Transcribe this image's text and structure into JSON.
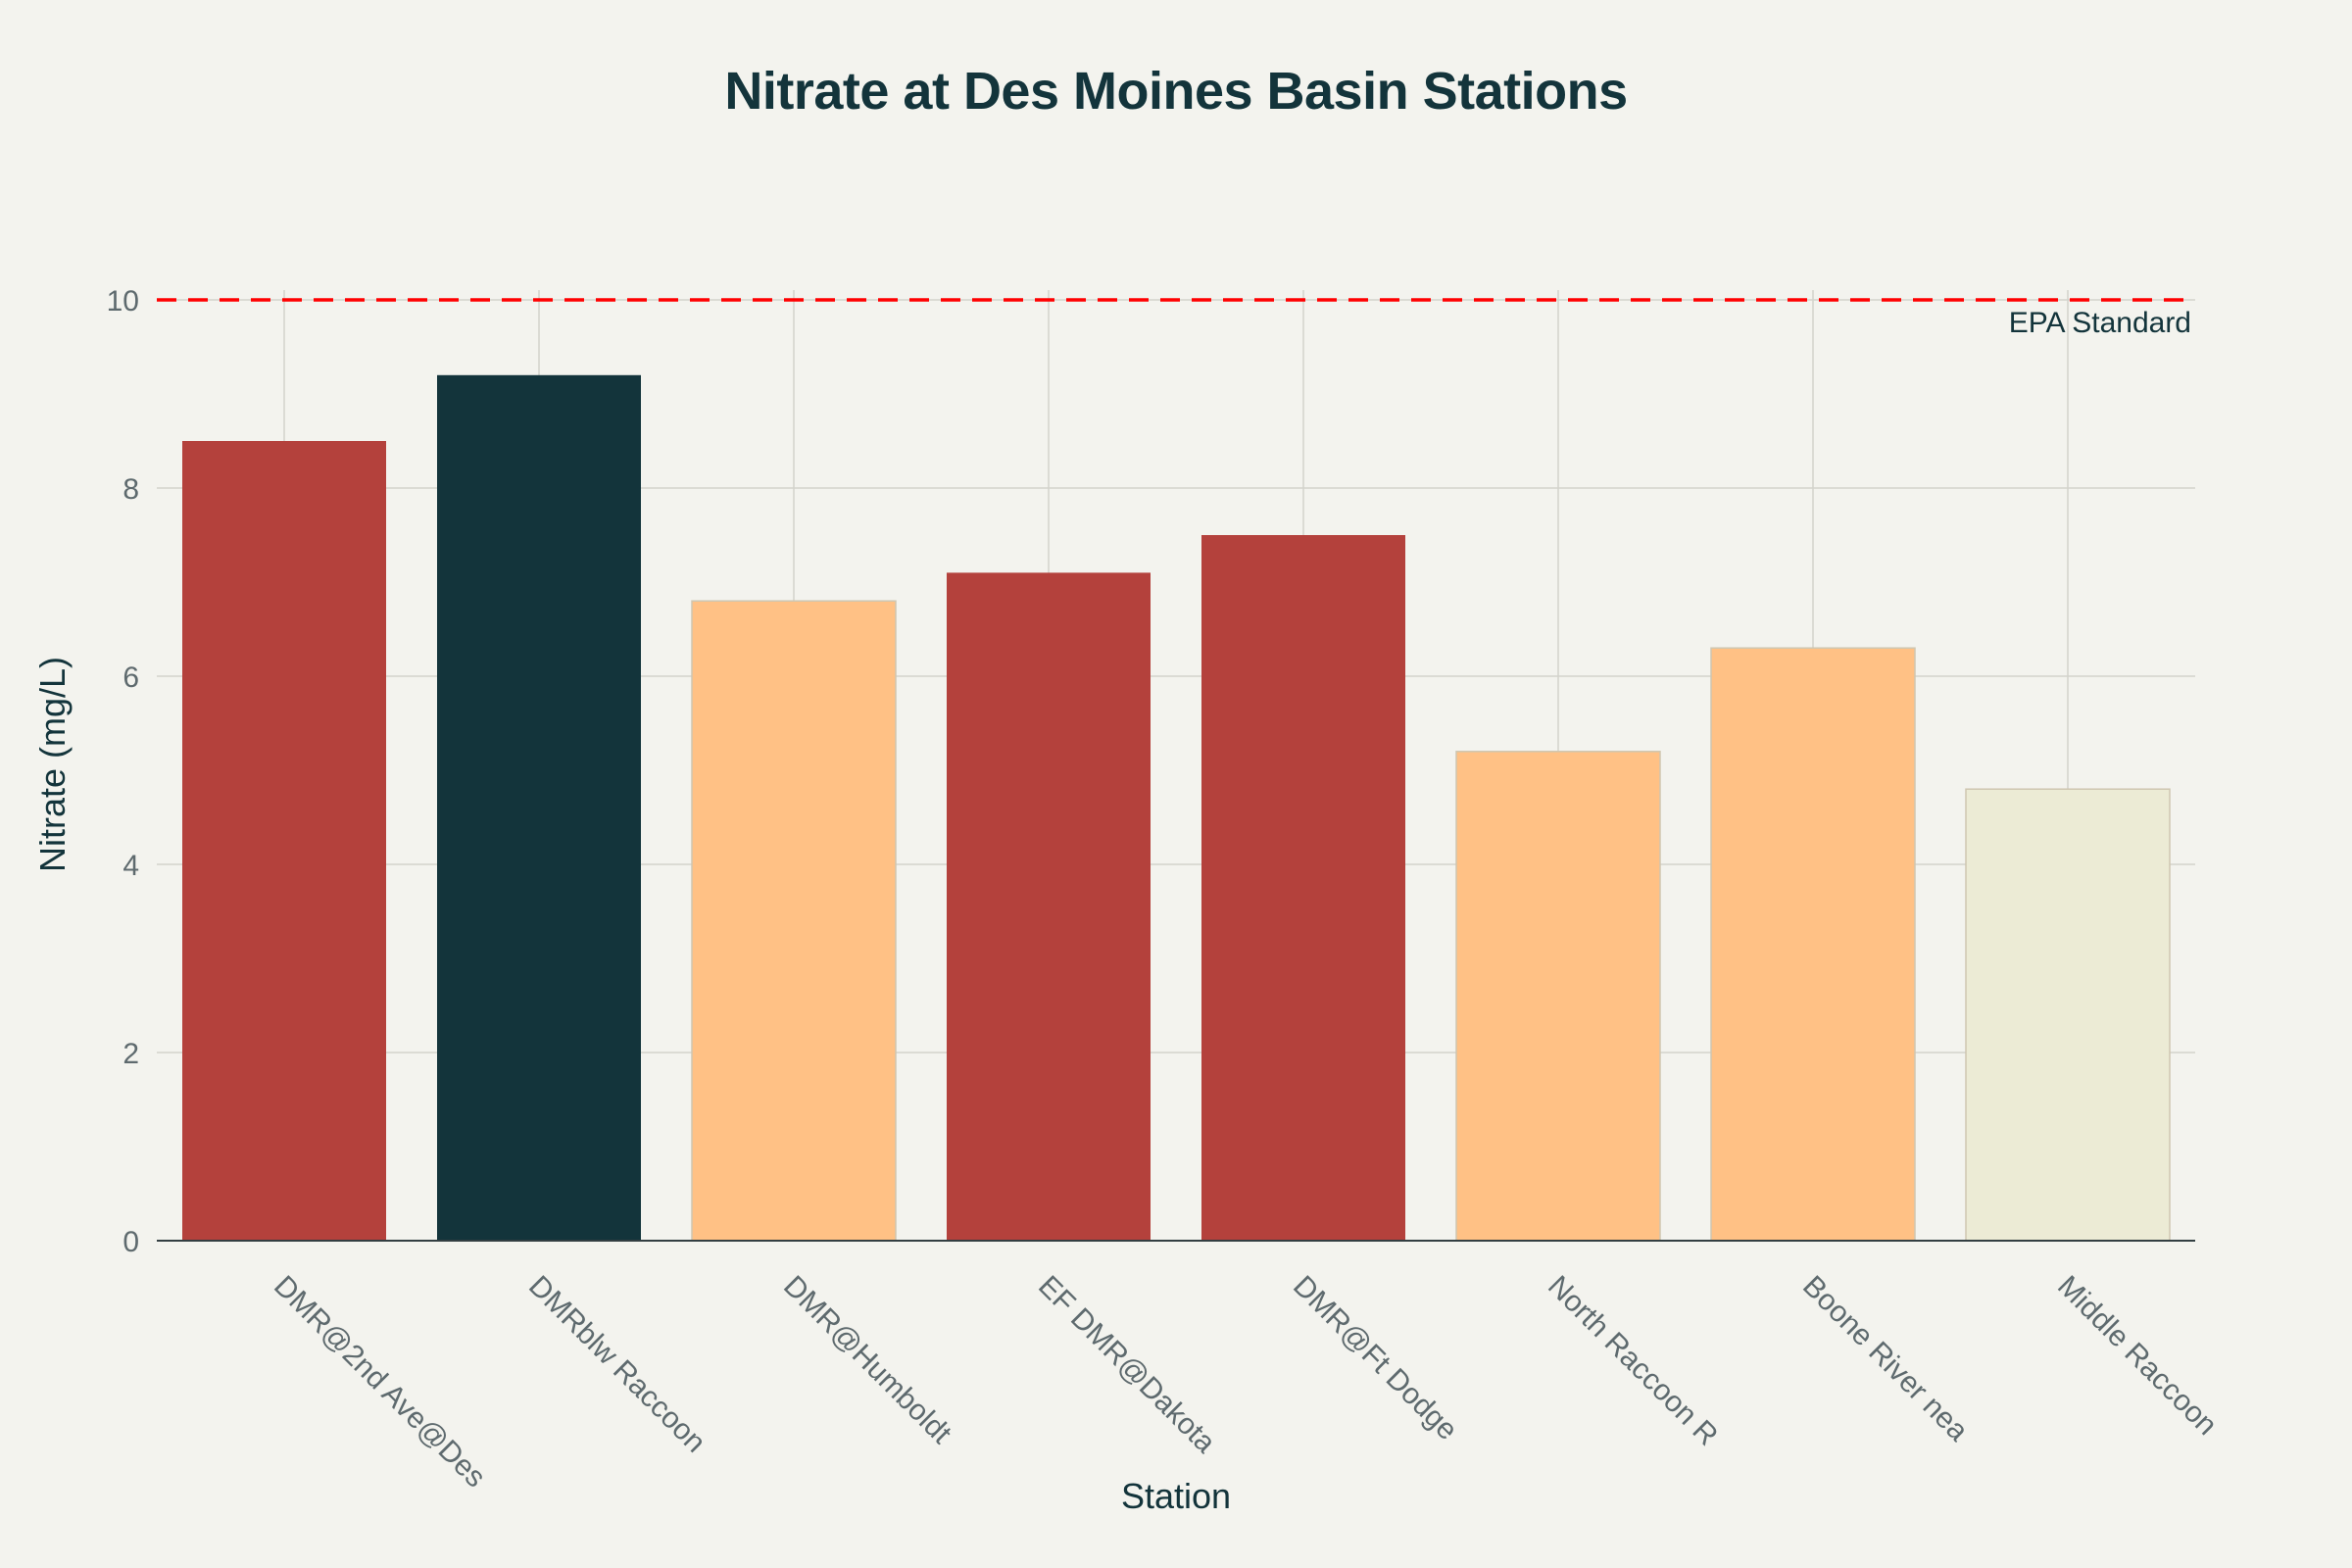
{
  "chart_data": {
    "type": "bar",
    "title": "Nitrate at Des Moines Basin Stations",
    "xlabel": "Station",
    "ylabel": "Nitrate (mg/L)",
    "ylim": [
      0,
      10
    ],
    "yticks": [
      0,
      2,
      4,
      6,
      8,
      10
    ],
    "grid": true,
    "categories": [
      "DMR@2nd Ave@Des",
      "DMRblw Raccoon",
      "DMR@Humboldt",
      "EF DMR@Dakota",
      "DMR@Ft Dodge",
      "North Raccoon R",
      "Boone River nea",
      "Middle Raccoon"
    ],
    "values": [
      8.5,
      9.2,
      6.8,
      7.1,
      7.5,
      5.2,
      6.3,
      4.8
    ],
    "bar_colors": [
      "#b4413c",
      "#13343b",
      "#ffc185",
      "#b4413c",
      "#b4413c",
      "#ffc185",
      "#ffc185",
      "#ecebd5"
    ],
    "reference_line": {
      "value": 10,
      "label": "EPA Standard",
      "color": "#ff0000",
      "style": "dashed"
    }
  }
}
